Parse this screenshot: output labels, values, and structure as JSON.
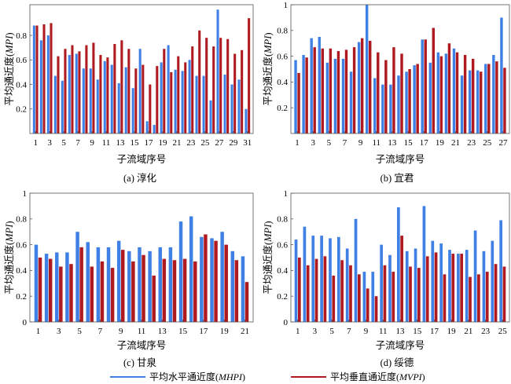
{
  "legend": {
    "position": "bottom",
    "items": [
      {
        "label": "平均水平通近度(MHPI)",
        "color": "#3f80e4"
      },
      {
        "label": "平均垂直通近度(MVPI)",
        "color": "#ae1a1f"
      }
    ]
  },
  "chart_data": [
    {
      "type": "bar",
      "title": "(a) 淳化",
      "xlabel": "子流域序号",
      "ylabel": "平均通近度(MPI)",
      "ylim": [
        0,
        1.05
      ],
      "grid": false,
      "y_tick_labels": [
        "0.2",
        "0.4",
        "0.6",
        "0.8"
      ],
      "x_tick_labels": [
        "1",
        "3",
        "5",
        "7",
        "9",
        "11",
        "13",
        "15",
        "17",
        "19",
        "21",
        "23",
        "25",
        "27",
        "29",
        "31"
      ],
      "categories": [
        1,
        2,
        3,
        4,
        5,
        6,
        7,
        8,
        9,
        10,
        11,
        12,
        13,
        14,
        15,
        16,
        17,
        18,
        19,
        20,
        21,
        22,
        23,
        24,
        25,
        26,
        27,
        28,
        29,
        30,
        31
      ],
      "series": [
        {
          "name": "平均水平通近度(MHPI)",
          "values": [
            0.88,
            0.76,
            0.8,
            0.47,
            0.43,
            0.64,
            0.65,
            0.53,
            0.53,
            0.44,
            0.59,
            0.56,
            0.41,
            0.54,
            0.37,
            0.69,
            0.1,
            0.07,
            0.58,
            0.72,
            0.52,
            0.51,
            0.6,
            0.47,
            0.47,
            0.27,
            1.01,
            0.48,
            0.4,
            0.44,
            0.2
          ]
        },
        {
          "name": "平均垂直通近度(MVPI)",
          "values": [
            0.88,
            0.89,
            0.9,
            0.63,
            0.69,
            0.72,
            0.67,
            0.72,
            0.74,
            0.64,
            0.62,
            0.73,
            0.76,
            0.69,
            0.53,
            0.56,
            0.4,
            0.55,
            0.69,
            0.5,
            0.63,
            0.58,
            0.71,
            0.84,
            0.78,
            0.71,
            0.78,
            0.77,
            0.65,
            0.68,
            0.94
          ]
        }
      ]
    },
    {
      "type": "bar",
      "title": "(b) 宜君",
      "xlabel": "子流域序号",
      "ylabel": "平均通近度(MPI)",
      "ylim": [
        0,
        1
      ],
      "grid": false,
      "y_tick_labels": [
        "0.2",
        "0.4",
        "0.6",
        "0.8",
        "1"
      ],
      "x_tick_labels": [
        "1",
        "3",
        "5",
        "7",
        "9",
        "11",
        "13",
        "15",
        "17",
        "19",
        "21",
        "23",
        "25",
        "27"
      ],
      "categories": [
        1,
        2,
        3,
        4,
        5,
        6,
        7,
        8,
        9,
        10,
        11,
        12,
        13,
        14,
        15,
        16,
        17,
        18,
        19,
        20,
        21,
        22,
        23,
        24,
        25,
        26,
        27
      ],
      "series": [
        {
          "name": "平均水平通近度(MHPI)",
          "values": [
            0.57,
            0.61,
            0.74,
            0.75,
            0.55,
            0.58,
            0.58,
            0.48,
            0.71,
            1.0,
            0.43,
            0.38,
            0.38,
            0.45,
            0.48,
            0.53,
            0.73,
            0.55,
            0.63,
            0.62,
            0.66,
            0.45,
            0.49,
            0.49,
            0.54,
            0.61,
            0.9
          ]
        },
        {
          "name": "平均垂直通近度(MVPI)",
          "values": [
            0.47,
            0.59,
            0.67,
            0.66,
            0.66,
            0.64,
            0.65,
            0.67,
            0.74,
            0.72,
            0.63,
            0.57,
            0.67,
            0.62,
            0.5,
            0.54,
            0.73,
            0.82,
            0.6,
            0.7,
            0.63,
            0.61,
            0.58,
            0.48,
            0.54,
            0.56,
            0.51
          ]
        }
      ]
    },
    {
      "type": "bar",
      "title": "(c) 甘泉",
      "xlabel": "子流域序号",
      "ylabel": "平均通近度(MPI)",
      "ylim": [
        0,
        1
      ],
      "grid": false,
      "y_tick_labels": [
        "0",
        "0.2",
        "0.4",
        "0.6",
        "0.8",
        "1"
      ],
      "x_tick_labels": [
        "1",
        "3",
        "5",
        "7",
        "9",
        "11",
        "13",
        "15",
        "17",
        "19",
        "21"
      ],
      "categories": [
        1,
        2,
        3,
        4,
        5,
        6,
        7,
        8,
        9,
        10,
        11,
        12,
        13,
        14,
        15,
        16,
        17,
        18,
        19,
        20,
        21
      ],
      "series": [
        {
          "name": "平均水平通近度(MHPI)",
          "values": [
            0.6,
            0.53,
            0.54,
            0.54,
            0.7,
            0.62,
            0.58,
            0.58,
            0.63,
            0.55,
            0.58,
            0.55,
            0.58,
            0.58,
            0.78,
            0.82,
            0.66,
            0.65,
            0.7,
            0.55,
            0.51
          ]
        },
        {
          "name": "平均垂直通近度(MVPI)",
          "values": [
            0.5,
            0.49,
            0.43,
            0.45,
            0.58,
            0.43,
            0.47,
            0.42,
            0.56,
            0.47,
            0.52,
            0.36,
            0.49,
            0.48,
            0.49,
            0.47,
            0.68,
            0.63,
            0.6,
            0.48,
            0.31
          ]
        }
      ]
    },
    {
      "type": "bar",
      "title": "(d) 绥德",
      "xlabel": "子流域序号",
      "ylabel": "平均通近度(MPI)",
      "ylim": [
        0,
        1
      ],
      "grid": false,
      "y_tick_labels": [
        "0",
        "0.2",
        "0.4",
        "0.6",
        "0.8",
        "1"
      ],
      "x_tick_labels": [
        "1",
        "3",
        "5",
        "7",
        "9",
        "11",
        "13",
        "15",
        "17",
        "19",
        "21",
        "23",
        "25"
      ],
      "categories": [
        1,
        2,
        3,
        4,
        5,
        6,
        7,
        8,
        9,
        10,
        11,
        12,
        13,
        14,
        15,
        16,
        17,
        18,
        19,
        20,
        21,
        22,
        23,
        24,
        25
      ],
      "series": [
        {
          "name": "平均水平通近度(MHPI)",
          "values": [
            0.64,
            0.74,
            0.67,
            0.67,
            0.65,
            0.66,
            0.57,
            0.8,
            0.39,
            0.39,
            0.6,
            0.52,
            0.89,
            0.55,
            0.57,
            0.9,
            0.63,
            0.61,
            0.56,
            0.53,
            0.56,
            0.71,
            0.55,
            0.63,
            0.79
          ]
        },
        {
          "name": "平均垂直通近度(MVPI)",
          "values": [
            0.5,
            0.44,
            0.49,
            0.51,
            0.36,
            0.48,
            0.44,
            0.37,
            0.26,
            0.2,
            0.44,
            0.39,
            0.67,
            0.43,
            0.42,
            0.51,
            0.54,
            0.37,
            0.53,
            0.53,
            0.35,
            0.37,
            0.39,
            0.45,
            0.43
          ]
        }
      ]
    }
  ]
}
